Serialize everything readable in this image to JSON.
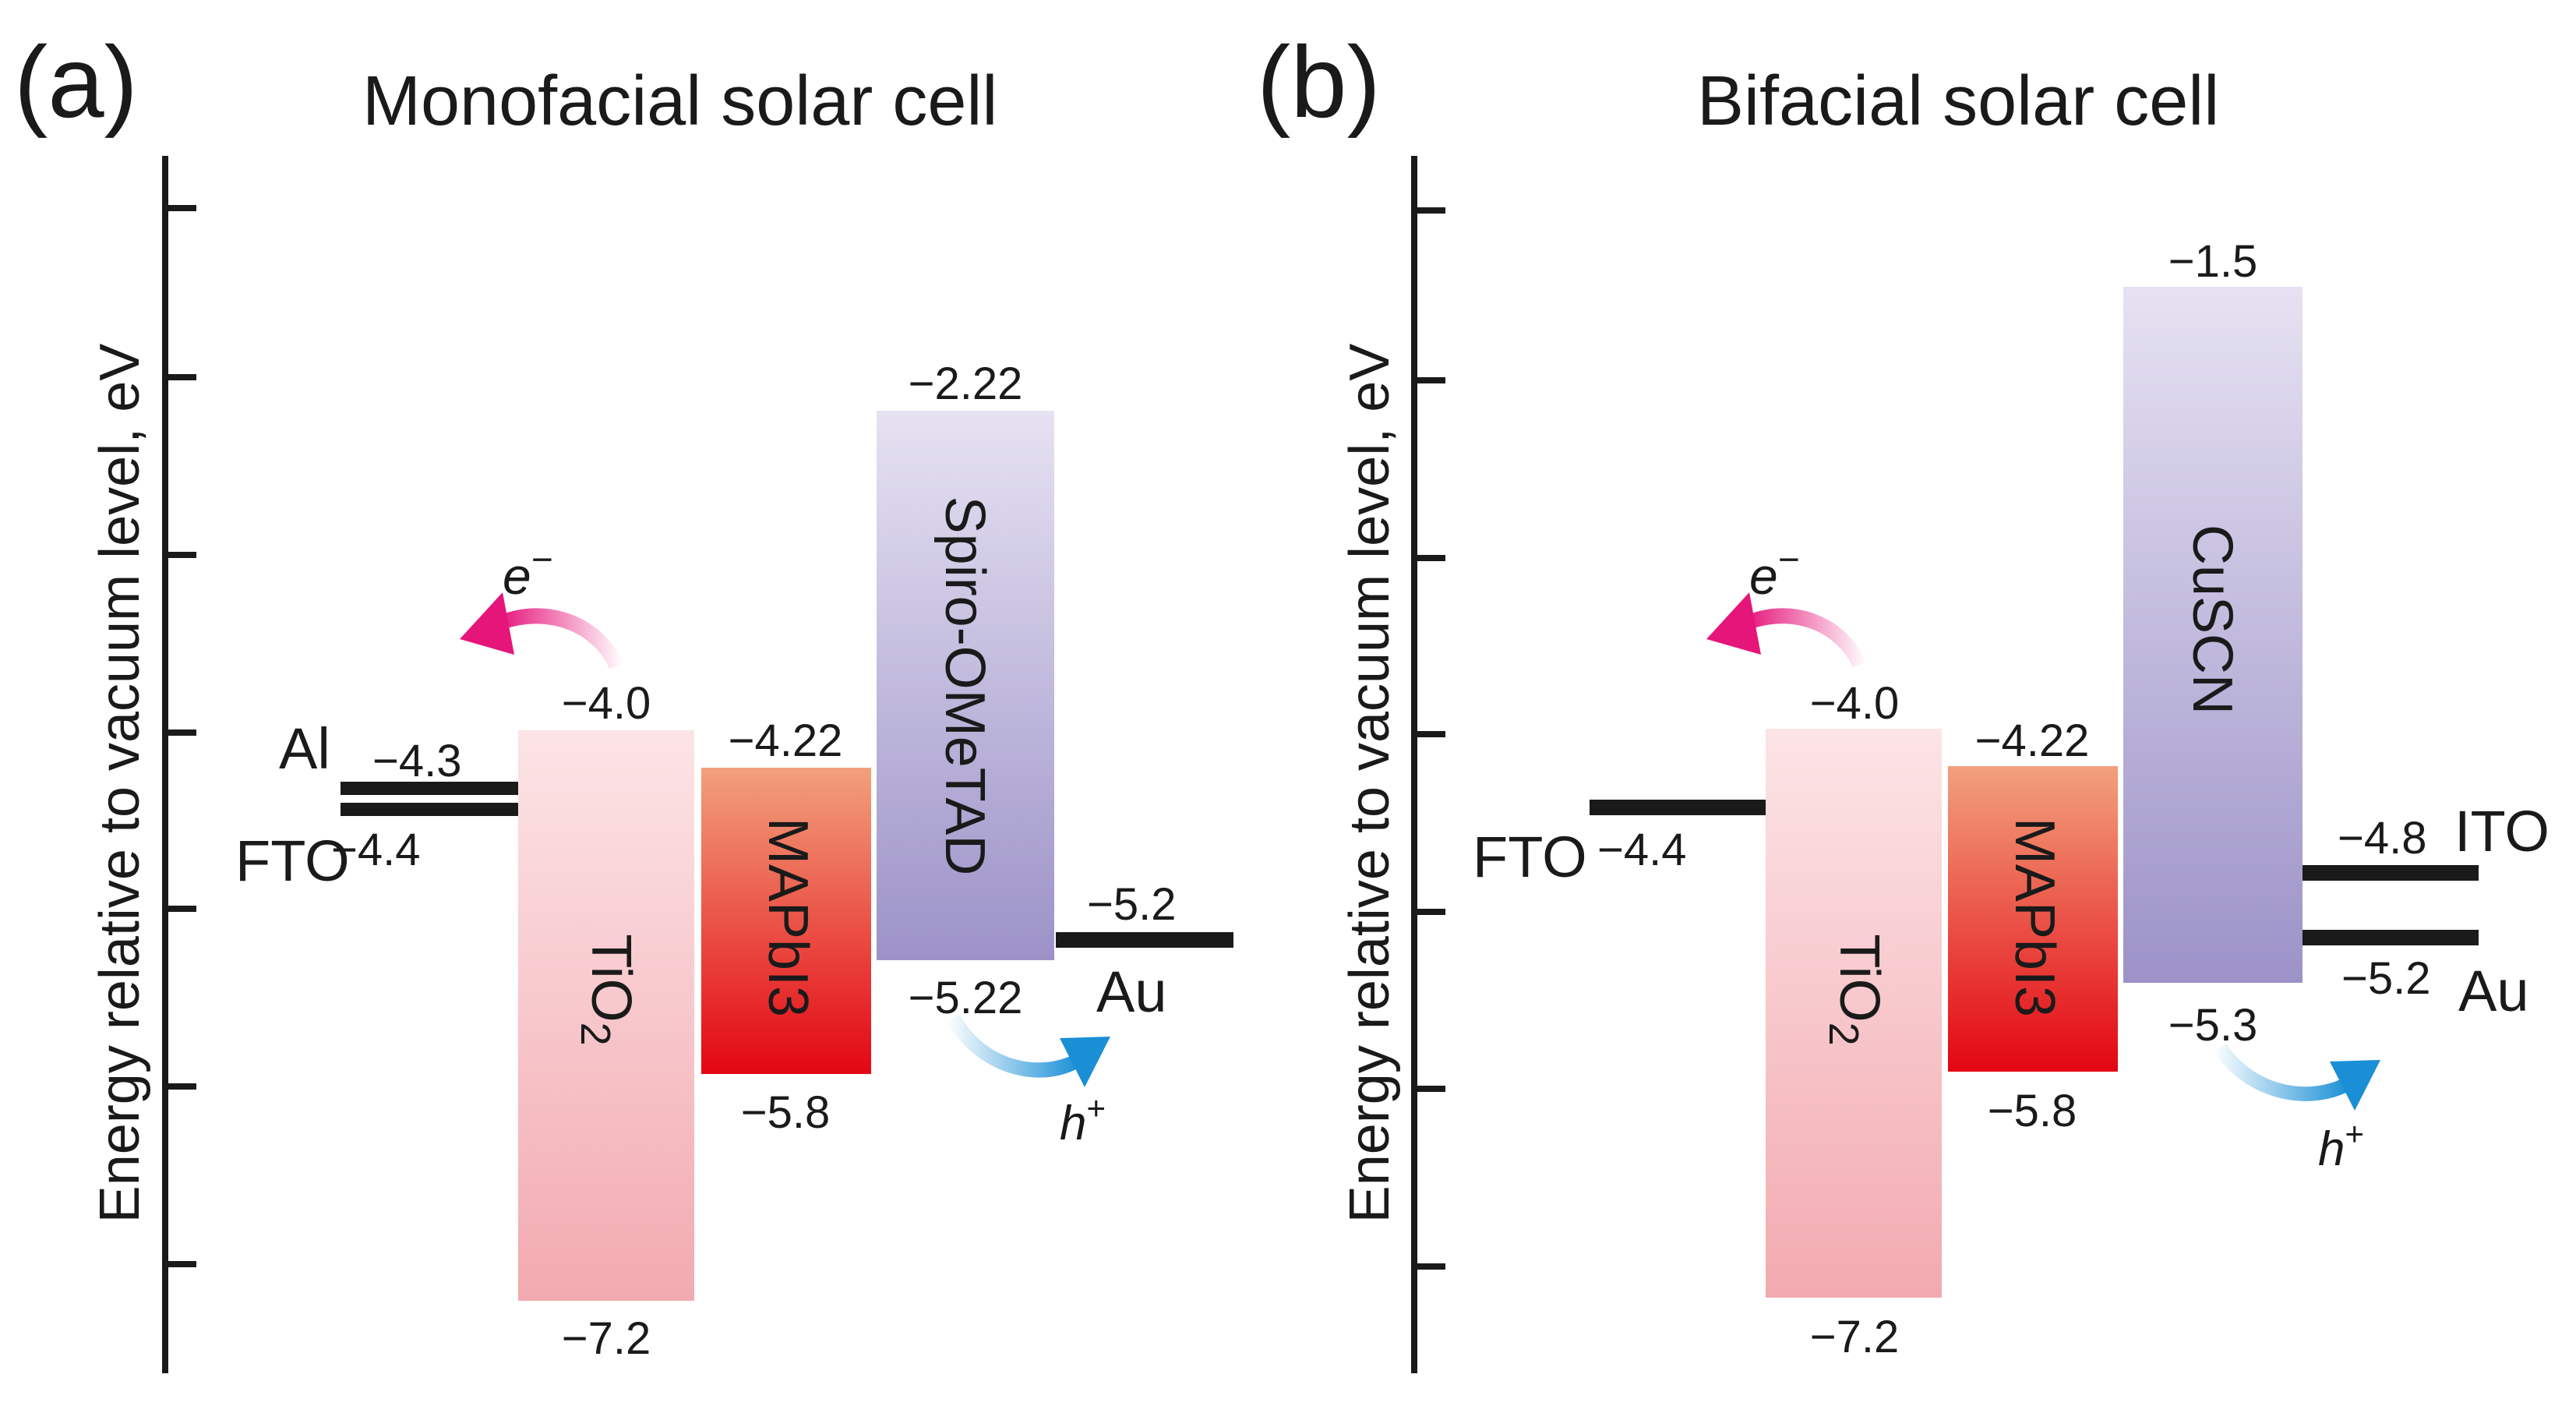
{
  "panels": [
    {
      "letter": "(a)",
      "title": "Monofacial solar cell",
      "y_axis_label": "Energy relative to vacuum level, eV",
      "electron_label": "e",
      "hole_label": "h",
      "layers": [
        {
          "name": "TiO",
          "name_sub": "2",
          "top": "−4.0",
          "bottom": "−7.2",
          "fill": "tio2-grad"
        },
        {
          "name": "MAPbI3",
          "name_sub": "",
          "top": "−4.22",
          "bottom": "−5.8",
          "fill": "mapbi3-grad"
        },
        {
          "name": "Spiro-OMeTAD",
          "name_sub": "",
          "top": "−2.22",
          "bottom": "−5.22",
          "fill": "purple-grad"
        }
      ],
      "contacts": [
        {
          "name": "Al",
          "value": "−4.3"
        },
        {
          "name": "FTO",
          "value": "−4.4"
        },
        {
          "name": "Au",
          "value": "−5.2"
        }
      ]
    },
    {
      "letter": "(b)",
      "title": "Bifacial solar cell",
      "y_axis_label": "Energy relative to vacuum level, eV",
      "electron_label": "e",
      "hole_label": "h",
      "layers": [
        {
          "name": "TiO",
          "name_sub": "2",
          "top": "−4.0",
          "bottom": "−7.2",
          "fill": "tio2-grad"
        },
        {
          "name": "MAPbI3",
          "name_sub": "",
          "top": "−4.22",
          "bottom": "−5.8",
          "fill": "mapbi3-grad"
        },
        {
          "name": "CuSCN",
          "name_sub": "",
          "top": "−1.5",
          "bottom": "−5.3",
          "fill": "purple-grad"
        }
      ],
      "contacts": [
        {
          "name": "FTO",
          "value": "−4.4"
        },
        {
          "name": "ITO",
          "value": "−4.8"
        },
        {
          "name": "Au",
          "value": "−5.2"
        }
      ]
    }
  ],
  "colors": {
    "electron": "#e5157a",
    "hole": "#1a8fd6",
    "tio2_top": "#fce4e6",
    "tio2_bottom": "#f2aab0",
    "mapbi3_top": "#f2a17c",
    "mapbi3_bottom": "#e30613",
    "purple_top": "#e6e2f2",
    "purple_bottom": "#9c92c8",
    "ink": "#1a1a1a"
  }
}
